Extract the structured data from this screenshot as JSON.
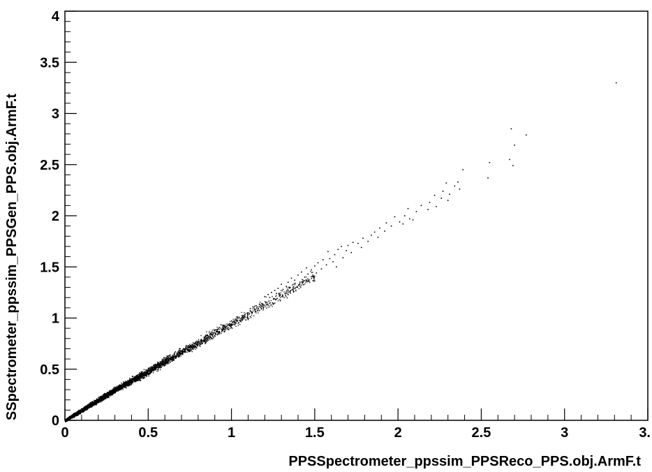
{
  "chart_data": {
    "type": "scatter",
    "title": "",
    "xlabel": "PPSSpectrometer_ppssim_PPSReco_PPS.obj.ArmF.t",
    "ylabel": "SSpectrometer_ppssim_PPSGen_PPS.obj.ArmF.t",
    "xlim": [
      0,
      3.5
    ],
    "ylim": [
      0,
      4
    ],
    "grid": false,
    "legend": "none",
    "x_ticks": [
      {
        "value": 0,
        "label": "0"
      },
      {
        "value": 0.5,
        "label": "0.5"
      },
      {
        "value": 1,
        "label": "1"
      },
      {
        "value": 1.5,
        "label": "1.5"
      },
      {
        "value": 2,
        "label": "2"
      },
      {
        "value": 2.5,
        "label": "2.5"
      },
      {
        "value": 3,
        "label": "3"
      },
      {
        "value": 3.5,
        "label": "3."
      }
    ],
    "y_ticks": [
      {
        "value": 0,
        "label": "0"
      },
      {
        "value": 0.5,
        "label": "0.5"
      },
      {
        "value": 1,
        "label": "1"
      },
      {
        "value": 1.5,
        "label": "1.5"
      },
      {
        "value": 2,
        "label": "2"
      },
      {
        "value": 2.5,
        "label": "2.5"
      },
      {
        "value": 3,
        "label": "3"
      },
      {
        "value": 3.5,
        "label": "3.5"
      },
      {
        "value": 4,
        "label": "4"
      }
    ],
    "series": [
      {
        "marker_color": "#000000",
        "points": [
          [
            3.31,
            3.3
          ],
          [
            2.68,
            2.85
          ],
          [
            2.77,
            2.79
          ],
          [
            2.7,
            2.69
          ],
          [
            2.67,
            2.55
          ],
          [
            2.69,
            2.49
          ],
          [
            2.55,
            2.52
          ],
          [
            2.54,
            2.37
          ],
          [
            2.39,
            2.45
          ],
          [
            2.36,
            2.33
          ],
          [
            2.29,
            2.32
          ],
          [
            2.34,
            2.29
          ],
          [
            2.37,
            2.26
          ],
          [
            2.31,
            2.21
          ],
          [
            2.27,
            2.24
          ],
          [
            2.22,
            2.2
          ],
          [
            2.26,
            2.17
          ],
          [
            2.3,
            2.15
          ],
          [
            2.19,
            2.13
          ],
          [
            2.14,
            2.1
          ],
          [
            2.23,
            2.09
          ],
          [
            2.06,
            2.07
          ],
          [
            2.11,
            2.04
          ],
          [
            2.18,
            2.06
          ],
          [
            2.04,
            2.0
          ],
          [
            2.07,
            1.97
          ],
          [
            1.98,
            1.99
          ],
          [
            2.01,
            1.94
          ],
          [
            2.09,
            1.96
          ],
          [
            1.93,
            1.93
          ],
          [
            1.96,
            1.9
          ],
          [
            2.03,
            1.92
          ],
          [
            1.89,
            1.88
          ],
          [
            1.92,
            1.85
          ],
          [
            1.86,
            1.84
          ],
          [
            1.84,
            1.81
          ],
          [
            1.88,
            1.79
          ],
          [
            1.79,
            1.78
          ],
          [
            1.82,
            1.75
          ],
          [
            1.76,
            1.73
          ],
          [
            1.73,
            1.74
          ],
          [
            1.78,
            1.69
          ],
          [
            1.7,
            1.71
          ],
          [
            1.66,
            1.7
          ],
          [
            1.69,
            1.66
          ],
          [
            1.64,
            1.67
          ],
          [
            1.72,
            1.64
          ],
          [
            1.62,
            1.62
          ],
          [
            1.58,
            1.65
          ],
          [
            1.67,
            1.59
          ],
          [
            1.59,
            1.58
          ],
          [
            1.61,
            1.55
          ],
          [
            1.55,
            1.57
          ],
          [
            1.57,
            1.52
          ],
          [
            1.52,
            1.54
          ],
          [
            1.63,
            1.5
          ],
          [
            1.5,
            1.51
          ],
          [
            1.54,
            1.48
          ],
          [
            1.48,
            1.47
          ],
          [
            1.45,
            1.49
          ],
          [
            1.51,
            1.44
          ],
          [
            1.46,
            1.43
          ],
          [
            1.42,
            1.45
          ],
          [
            1.49,
            1.41
          ],
          [
            1.44,
            1.4
          ],
          [
            1.4,
            1.42
          ],
          [
            1.38,
            1.37
          ],
          [
            1.43,
            1.36
          ],
          [
            1.36,
            1.39
          ],
          [
            1.41,
            1.33
          ],
          [
            1.34,
            1.35
          ],
          [
            1.33,
            1.31
          ],
          [
            1.37,
            1.3
          ],
          [
            1.3,
            1.33
          ],
          [
            1.31,
            1.28
          ],
          [
            1.28,
            1.29
          ],
          [
            1.35,
            1.26
          ],
          [
            1.26,
            1.27
          ],
          [
            1.27,
            1.24
          ],
          [
            1.24,
            1.25
          ],
          [
            1.29,
            1.22
          ],
          [
            1.22,
            1.23
          ],
          [
            1.23,
            1.2
          ],
          [
            1.2,
            1.21
          ]
        ],
        "core_band": [
          [
            0.0,
            0.0,
            0.03
          ],
          [
            0.1,
            0.1,
            0.05
          ],
          [
            0.2,
            0.2,
            0.06
          ],
          [
            0.3,
            0.3,
            0.07
          ],
          [
            0.4,
            0.39,
            0.08
          ],
          [
            0.5,
            0.48,
            0.09
          ],
          [
            0.6,
            0.58,
            0.09
          ],
          [
            0.7,
            0.67,
            0.1
          ],
          [
            0.8,
            0.76,
            0.1
          ],
          [
            0.9,
            0.86,
            0.11
          ],
          [
            1.0,
            0.95,
            0.11
          ],
          [
            1.1,
            1.04,
            0.12
          ],
          [
            1.2,
            1.14,
            0.12
          ],
          [
            1.3,
            1.23,
            0.13
          ],
          [
            1.4,
            1.33,
            0.13
          ],
          [
            1.5,
            1.42,
            0.14
          ]
        ]
      }
    ]
  }
}
